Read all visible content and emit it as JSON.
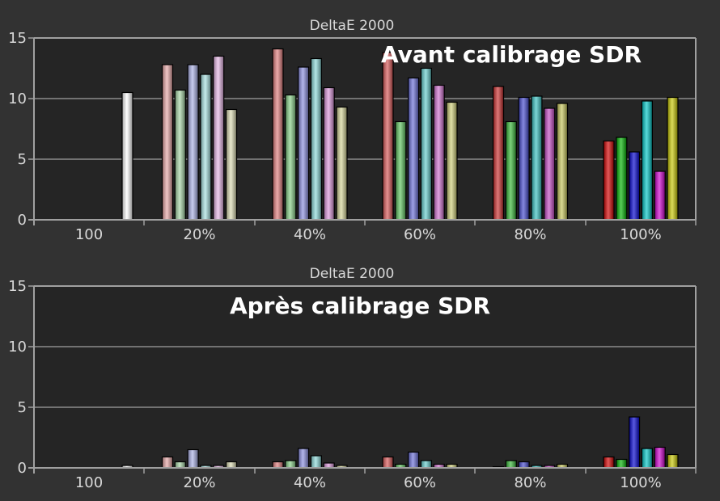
{
  "colors": {
    "background": "#323232",
    "plot_background": "#252525",
    "axis": "#a0a0a0",
    "grid": "#8c8c8c",
    "text": "#d8d8d8",
    "overlay_text": "#ffffff"
  },
  "chart_data": [
    {
      "type": "bar",
      "title": "DeltaE 2000",
      "overlay_label": "Avant calibrage SDR",
      "ylim": [
        0,
        15
      ],
      "yticks": [
        "0",
        "5",
        "10",
        "15"
      ],
      "grid": true,
      "categories": [
        "100",
        "20%",
        "40%",
        "60%",
        "80%",
        "100%"
      ],
      "groups": [
        {
          "category": "100",
          "bars": [
            {
              "value": 10.5,
              "color": "#ffffff"
            }
          ]
        },
        {
          "category": "20%",
          "bars": [
            {
              "value": 12.8,
              "color": "#e6a6a6"
            },
            {
              "value": 10.7,
              "color": "#a6d6a6"
            },
            {
              "value": 12.8,
              "color": "#aab0e6"
            },
            {
              "value": 12.0,
              "color": "#a6e0e0"
            },
            {
              "value": 13.5,
              "color": "#e6b6e6"
            },
            {
              "value": 9.1,
              "color": "#dcdcb2"
            }
          ]
        },
        {
          "category": "40%",
          "bars": [
            {
              "value": 14.1,
              "color": "#e07c7c"
            },
            {
              "value": 10.3,
              "color": "#86d086"
            },
            {
              "value": 12.6,
              "color": "#8a8ee0"
            },
            {
              "value": 13.3,
              "color": "#8ad8d8"
            },
            {
              "value": 10.9,
              "color": "#dc96dc"
            },
            {
              "value": 9.3,
              "color": "#d6d698"
            }
          ]
        },
        {
          "category": "60%",
          "bars": [
            {
              "value": 13.8,
              "color": "#d85656"
            },
            {
              "value": 8.1,
              "color": "#5ec45e"
            },
            {
              "value": 11.7,
              "color": "#6a6ed8"
            },
            {
              "value": 12.5,
              "color": "#62cccc"
            },
            {
              "value": 11.1,
              "color": "#d070d0"
            },
            {
              "value": 9.7,
              "color": "#cfcf78"
            }
          ]
        },
        {
          "category": "80%",
          "bars": [
            {
              "value": 11.0,
              "color": "#cc2e2e"
            },
            {
              "value": 8.1,
              "color": "#36b836"
            },
            {
              "value": 10.1,
              "color": "#4448d0"
            },
            {
              "value": 10.2,
              "color": "#36c0c0"
            },
            {
              "value": 9.2,
              "color": "#c44ac4"
            },
            {
              "value": 9.6,
              "color": "#c8c85a"
            }
          ]
        },
        {
          "category": "100%",
          "bars": [
            {
              "value": 6.5,
              "color": "#d40000"
            },
            {
              "value": 6.8,
              "color": "#00b400"
            },
            {
              "value": 5.6,
              "color": "#0000d0"
            },
            {
              "value": 9.8,
              "color": "#00c4c4"
            },
            {
              "value": 4.0,
              "color": "#d000d0"
            },
            {
              "value": 10.1,
              "color": "#c8c800"
            }
          ]
        }
      ]
    },
    {
      "type": "bar",
      "title": "DeltaE 2000",
      "overlay_label": "Après calibrage SDR",
      "ylim": [
        0,
        15
      ],
      "yticks": [
        "0",
        "5",
        "10",
        "15"
      ],
      "grid": true,
      "categories": [
        "100",
        "20%",
        "40%",
        "60%",
        "80%",
        "100%"
      ],
      "groups": [
        {
          "category": "100",
          "bars": [
            {
              "value": 0.2,
              "color": "#ffffff"
            }
          ]
        },
        {
          "category": "20%",
          "bars": [
            {
              "value": 0.9,
              "color": "#e6a6a6"
            },
            {
              "value": 0.5,
              "color": "#a6d6a6"
            },
            {
              "value": 1.5,
              "color": "#aab0e6"
            },
            {
              "value": 0.2,
              "color": "#a6e0e0"
            },
            {
              "value": 0.2,
              "color": "#e6b6e6"
            },
            {
              "value": 0.5,
              "color": "#dcdcb2"
            }
          ]
        },
        {
          "category": "40%",
          "bars": [
            {
              "value": 0.5,
              "color": "#e07c7c"
            },
            {
              "value": 0.6,
              "color": "#86d086"
            },
            {
              "value": 1.6,
              "color": "#8a8ee0"
            },
            {
              "value": 1.0,
              "color": "#8ad8d8"
            },
            {
              "value": 0.4,
              "color": "#dc96dc"
            },
            {
              "value": 0.2,
              "color": "#d6d698"
            }
          ]
        },
        {
          "category": "60%",
          "bars": [
            {
              "value": 0.9,
              "color": "#d85656"
            },
            {
              "value": 0.3,
              "color": "#5ec45e"
            },
            {
              "value": 1.3,
              "color": "#6a6ed8"
            },
            {
              "value": 0.6,
              "color": "#62cccc"
            },
            {
              "value": 0.3,
              "color": "#d070d0"
            },
            {
              "value": 0.3,
              "color": "#cfcf78"
            }
          ]
        },
        {
          "category": "80%",
          "bars": [
            {
              "value": 0.1,
              "color": "#cc2e2e"
            },
            {
              "value": 0.6,
              "color": "#36b836"
            },
            {
              "value": 0.5,
              "color": "#4448d0"
            },
            {
              "value": 0.2,
              "color": "#36c0c0"
            },
            {
              "value": 0.2,
              "color": "#c44ac4"
            },
            {
              "value": 0.3,
              "color": "#c8c85a"
            }
          ]
        },
        {
          "category": "100%",
          "bars": [
            {
              "value": 0.9,
              "color": "#d40000"
            },
            {
              "value": 0.7,
              "color": "#00b400"
            },
            {
              "value": 4.2,
              "color": "#0000d0"
            },
            {
              "value": 1.6,
              "color": "#00c4c4"
            },
            {
              "value": 1.7,
              "color": "#d000d0"
            },
            {
              "value": 1.1,
              "color": "#c8c800"
            }
          ]
        }
      ]
    }
  ]
}
